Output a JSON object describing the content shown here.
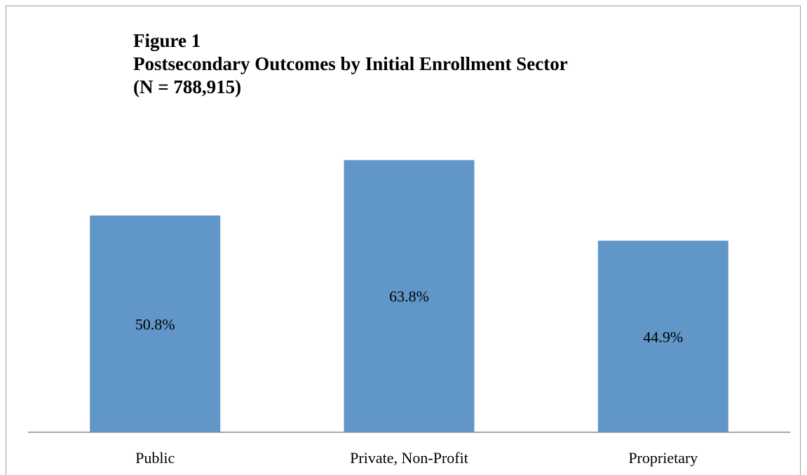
{
  "chart_data": {
    "type": "bar",
    "title": "Figure 1",
    "subtitle": "Postsecondary Outcomes by Initial Enrollment Sector",
    "subtitle2": "(N = 788,915)",
    "categories": [
      "Public",
      "Private, Non-Profit",
      "Proprietary"
    ],
    "values": [
      50.8,
      63.8,
      44.9
    ],
    "data_labels": [
      "50.8%",
      "63.8%",
      "44.9%"
    ],
    "xlabel": "",
    "ylabel": "",
    "ylim": [
      0,
      70
    ],
    "grid": false,
    "legend": "none",
    "bar_color": "#6096c8"
  }
}
